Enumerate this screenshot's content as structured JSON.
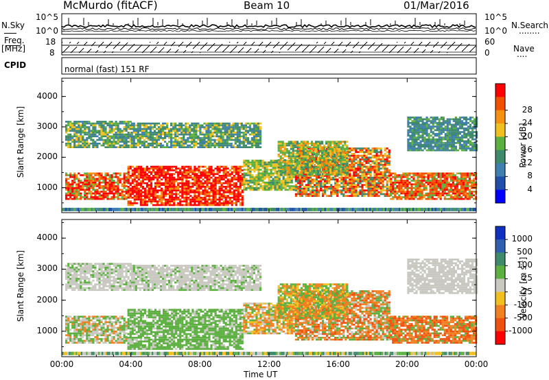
{
  "header": {
    "station": "McMurdo (fitACF)",
    "beam": "Beam 10",
    "date": "01/Mar/2016"
  },
  "top_strip": {
    "left_label": "N.Sky",
    "left_ticks": [
      "10^5",
      "10^0"
    ],
    "right_ticks": [
      "10^5",
      "10^0"
    ],
    "right_label": "N.Search",
    "right_label_dots": "........"
  },
  "freq_strip": {
    "left_label_1": "Freq.",
    "left_label_2": "[MHz]",
    "left_ticks": [
      "18",
      "8"
    ],
    "right_ticks": [
      "60",
      "0"
    ],
    "right_label": "Nave",
    "right_label_dots": "....",
    "cpid_label": "CPID",
    "mode_text": "normal (fast) 151 RF"
  },
  "chart_data": [
    {
      "type": "heatmap",
      "name": "power",
      "ylabel": "Slant Range [km]",
      "ylim": [
        180,
        4600
      ],
      "yticks": [
        "1000",
        "2000",
        "3000",
        "4000"
      ],
      "xlim": [
        0,
        24
      ],
      "xticks": [
        "00:00",
        "04:00",
        "08:00",
        "12:00",
        "16:00",
        "20:00",
        "00:00"
      ],
      "colorbar": {
        "label": "Power [dB]",
        "ticks": [
          "4",
          "8",
          "12",
          "16",
          "20",
          "24",
          "28"
        ],
        "colors": [
          "#0000ff",
          "#1f4fa8",
          "#3f7fb0",
          "#3e8a6a",
          "#5cb040",
          "#f0c020",
          "#f59010",
          "#f05000",
          "#ff0000"
        ]
      }
    },
    {
      "type": "heatmap",
      "name": "velocity",
      "ylabel": "Slant Range [km]",
      "ylim": [
        180,
        4600
      ],
      "yticks": [
        "1000",
        "2000",
        "3000",
        "4000"
      ],
      "xlim": [
        0,
        24
      ],
      "xticks": [
        "00:00",
        "04:00",
        "08:00",
        "12:00",
        "16:00",
        "20:00",
        "00:00"
      ],
      "xlabel": "Time UT",
      "colorbar": {
        "label": "Velocity [m s",
        "label_sup": "-1",
        "label_end": "]",
        "ticks": [
          "1000",
          "500",
          "100",
          "25",
          "-25",
          "-100",
          "-500",
          "-1000"
        ],
        "colors": [
          "#1030c0",
          "#2f60b0",
          "#3e8a6a",
          "#5cb040",
          "#c8c8c0",
          "#f0c020",
          "#f08020",
          "#f05010",
          "#ff0000"
        ]
      }
    }
  ]
}
